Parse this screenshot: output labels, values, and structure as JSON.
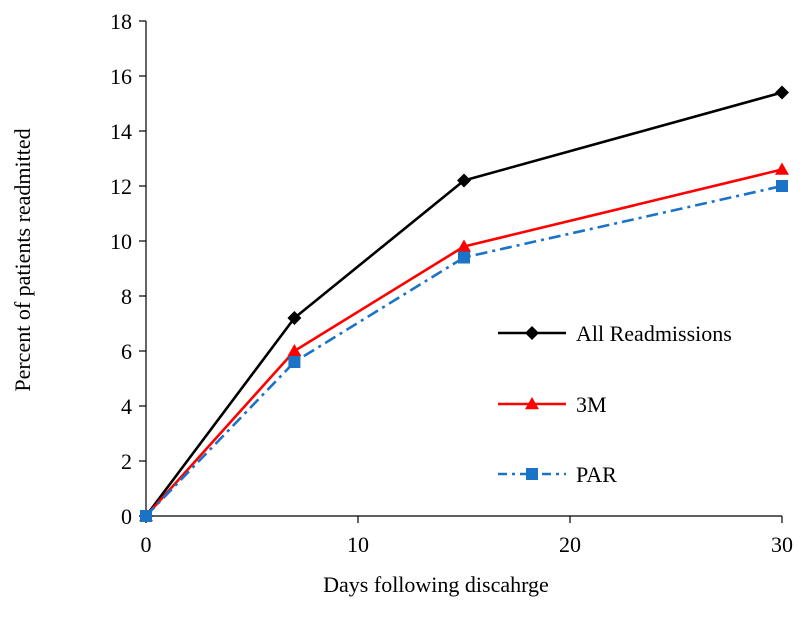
{
  "chart_data": {
    "type": "line",
    "title": "",
    "xlabel": "Days following  discahrge",
    "ylabel": "Percent of patients  readmitted",
    "xlim": [
      0,
      30
    ],
    "ylim": [
      0,
      18
    ],
    "xticks": [
      0,
      10,
      20,
      30
    ],
    "yticks": [
      0,
      2,
      4,
      6,
      8,
      10,
      12,
      14,
      16,
      18
    ],
    "grid": false,
    "legend_position": "right",
    "series": [
      {
        "name": "All Readmissions",
        "x": [
          0,
          7,
          15,
          30
        ],
        "values": [
          0,
          7.2,
          12.2,
          15.4
        ],
        "color": "#000000",
        "marker": "diamond",
        "dash": "solid"
      },
      {
        "name": "3M",
        "x": [
          0,
          7,
          15,
          30
        ],
        "values": [
          0,
          6.0,
          9.8,
          12.6
        ],
        "color": "#ff0000",
        "marker": "triangle",
        "dash": "solid"
      },
      {
        "name": "PAR",
        "x": [
          0,
          7,
          15,
          30
        ],
        "values": [
          0,
          5.6,
          9.4,
          12.0
        ],
        "color": "#1a73c7",
        "marker": "square",
        "dash": "dash-dot"
      }
    ]
  }
}
